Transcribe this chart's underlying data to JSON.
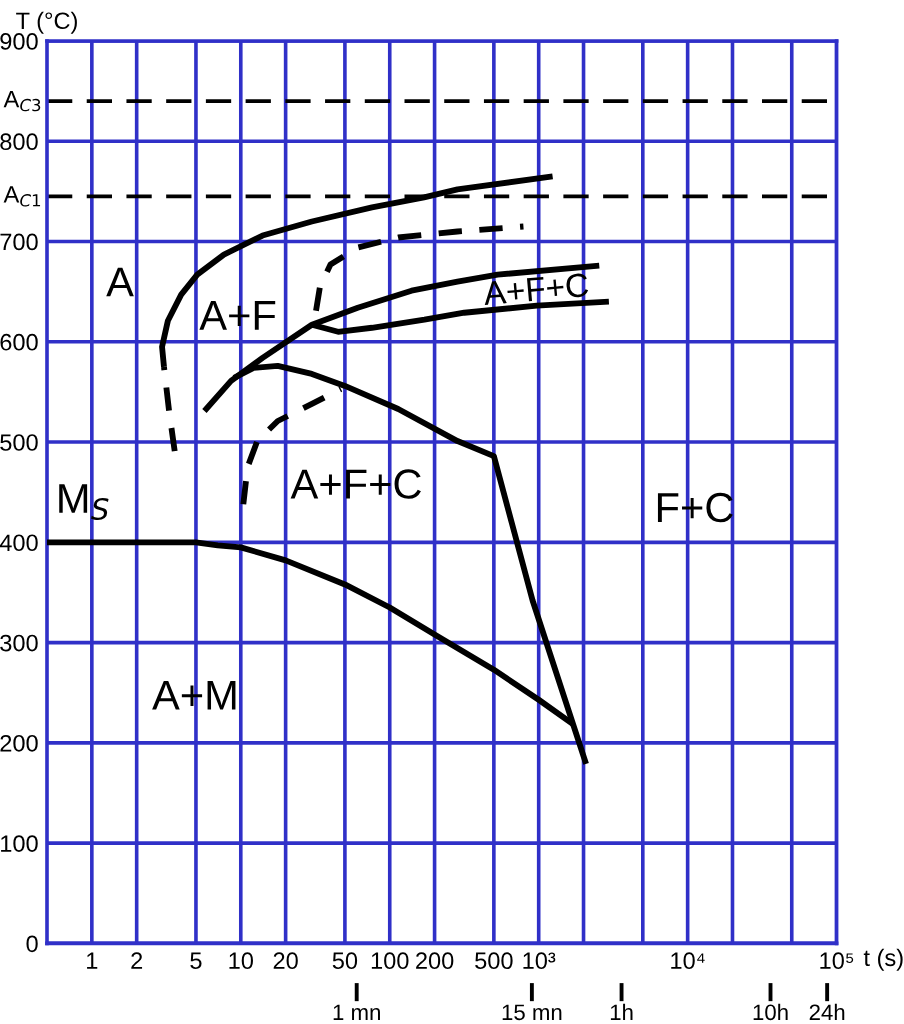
{
  "chart_data": {
    "type": "line",
    "xlabel": "t (s)",
    "ylabel": "T (°C)",
    "log": "x",
    "grid": true,
    "xlim": [
      0.5,
      100000
    ],
    "xticks": [
      1,
      2,
      5,
      10,
      20,
      50,
      100,
      200,
      500,
      {
        "value": 1000,
        "label": "10³"
      },
      {
        "value": 2000,
        "label": null
      },
      {
        "value": 5000,
        "label": null
      },
      {
        "value": 10000,
        "label": "10⁴"
      },
      {
        "value": 20000,
        "label": null
      },
      {
        "value": 50000,
        "label": null
      },
      {
        "value": 100000,
        "label": "10⁵"
      }
    ],
    "ylim": [
      0,
      900
    ],
    "yticks": [
      0,
      100,
      200,
      300,
      400,
      500,
      600,
      700,
      800,
      900
    ],
    "ref_lines": [
      {
        "axis": "y",
        "value": 840,
        "label": "A$_{C3}$",
        "color": "#000000",
        "line_style": "dashed"
      },
      {
        "axis": "y",
        "value": 745,
        "label": "A$_{C1}$",
        "color": "#000000",
        "line_style": "dashed"
      },
      {
        "axis": "x",
        "value": 60,
        "label": "1 mn",
        "color": "#000000"
      },
      {
        "axis": "x",
        "value": 900,
        "label": "15 mn",
        "color": "#000000"
      },
      {
        "axis": "x",
        "value": 3600,
        "label": "1h",
        "color": "#000000"
      },
      {
        "axis": "x",
        "value": 36000,
        "label": "10h",
        "color": "#000000"
      },
      {
        "axis": "x",
        "value": 86400,
        "label": "24h",
        "color": "#000000"
      }
    ],
    "series": [
      {
        "color": "#000000",
        "line_style": "dashed",
        "x": [
          3.6,
          3.3,
          3.05
        ],
        "values": [
          491,
          531,
          575
        ]
      },
      {
        "color": "#000000",
        "line_style": "solid",
        "x": [
          3.05,
          2.96,
          3.24,
          3.98,
          5.1,
          7.7,
          14,
          30,
          76,
          170,
          285,
          1240
        ],
        "values": [
          575,
          595,
          621,
          647,
          667,
          687,
          706,
          720,
          734,
          744,
          752,
          765
        ]
      },
      {
        "color": "#000000",
        "line_style": "dashed",
        "x": [
          32,
          34,
          40,
          61,
          114,
          285,
          790
        ],
        "values": [
          631,
          655,
          677,
          694,
          704,
          710,
          715
        ]
      },
      {
        "color": "#000000",
        "line_style": "solid",
        "x": [
          5.7,
          8.6,
          14,
          30,
          61,
          140,
          285,
          530,
          2550
        ],
        "values": [
          531,
          561,
          584,
          617,
          634,
          651,
          660,
          667,
          676
        ]
      },
      {
        "color": "#000000",
        "line_style": "solid",
        "x": [
          30,
          45,
          76,
          171,
          316,
          970,
          2960
        ],
        "values": [
          617,
          610,
          614,
          622,
          629,
          636,
          640
        ]
      },
      {
        "color": "#000000",
        "line_style": "solid",
        "x": [
          9,
          12.2,
          17.7,
          30,
          50,
          114,
          285,
          500,
          910,
          2080
        ],
        "values": [
          564,
          574,
          576,
          568,
          556,
          533,
          501,
          486,
          342,
          179
        ]
      },
      {
        "color": "#000000",
        "line_style": "dashed",
        "x": [
          10.4,
          11.1,
          12.9,
          17.7,
          30,
          47
        ],
        "values": [
          438,
          475,
          501,
          521,
          538,
          553
        ]
      },
      {
        "color": "#000000",
        "line_style": "solid",
        "x": [
          0.5,
          5,
          7,
          10,
          20,
          50,
          100,
          200,
          500,
          1000,
          1690
        ],
        "values": [
          400,
          400,
          397,
          395,
          382,
          358,
          335,
          308,
          273,
          243,
          219
        ]
      }
    ],
    "annotations": [
      "A",
      "A+F",
      "A+F+C",
      "A+F+C",
      "F+C",
      "A+M",
      "M$_{S}$"
    ]
  }
}
